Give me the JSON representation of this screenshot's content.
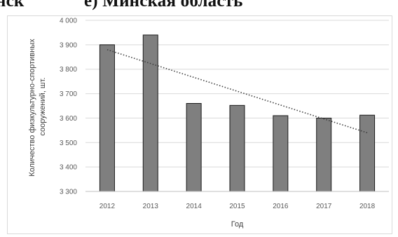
{
  "heading": {
    "left_fragment": "нск",
    "right_fragment": "е) Минская область"
  },
  "chart_data": {
    "type": "bar",
    "categories": [
      "2012",
      "2013",
      "2014",
      "2015",
      "2016",
      "2017",
      "2018"
    ],
    "values": [
      3900,
      3940,
      3660,
      3652,
      3610,
      3600,
      3612
    ],
    "xlabel": "Год",
    "ylabel_lines": [
      "Количество физкультурно-спортивных",
      "сооружений, шт."
    ],
    "ylim": [
      3300,
      4000
    ],
    "yticks": [
      3300,
      3400,
      3500,
      3600,
      3700,
      3800,
      3900,
      4000
    ],
    "ytick_labels": [
      "3 300",
      "3 400",
      "3 500",
      "3 600",
      "3 700",
      "3 800",
      "3 900",
      "4 000"
    ],
    "grid": true,
    "trendline": {
      "type": "linear",
      "style": "dotted",
      "start": 3880,
      "end": 3540
    },
    "colors": {
      "bar": "#7f7f7f",
      "bar_edge": "#1a1a1a",
      "grid": "#d9d9d9",
      "trendline": "#3f3f3f"
    }
  }
}
